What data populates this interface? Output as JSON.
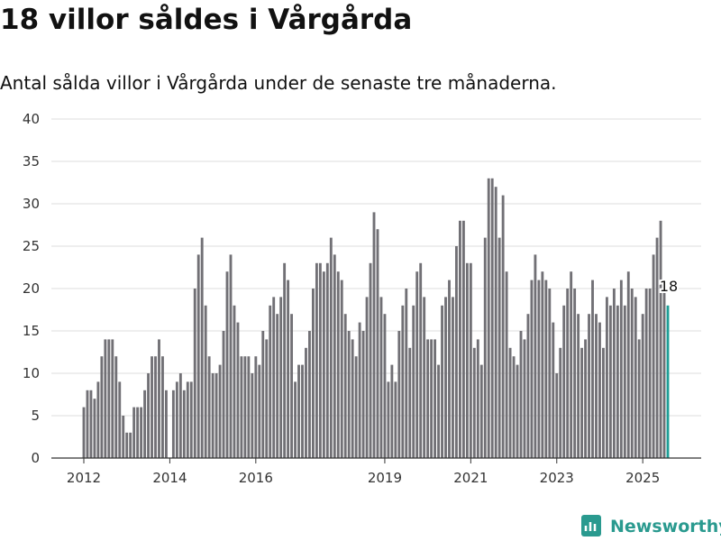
{
  "title": "18 villor såldes i Vårgårda",
  "subtitle": "Antal sålda villor i Vårgårda under de senaste tre månaderna.",
  "brand": "Newsworthy",
  "colors": {
    "bar": "#717075",
    "highlight": "#1e9e96",
    "grid": "#dddddd",
    "brand": "#2a9a8f"
  },
  "chart_data": {
    "type": "bar",
    "x_start": "2012-01",
    "x_end": "2025-08",
    "ylim": [
      0,
      40
    ],
    "yticks": [
      0,
      5,
      10,
      15,
      20,
      25,
      30,
      35,
      40
    ],
    "xticks": [
      "2012",
      "2014",
      "2016",
      "2019",
      "2021",
      "2023",
      "2025"
    ],
    "highlight_label": "18",
    "values": [
      6,
      8,
      8,
      7,
      9,
      12,
      14,
      14,
      14,
      12,
      9,
      5,
      3,
      3,
      6,
      6,
      6,
      8,
      10,
      12,
      12,
      14,
      12,
      8,
      0,
      8,
      9,
      10,
      8,
      9,
      9,
      20,
      24,
      26,
      18,
      12,
      10,
      10,
      11,
      15,
      22,
      24,
      18,
      16,
      12,
      12,
      12,
      10,
      12,
      11,
      15,
      14,
      18,
      19,
      17,
      19,
      23,
      21,
      17,
      9,
      11,
      11,
      13,
      15,
      20,
      23,
      23,
      22,
      23,
      26,
      24,
      22,
      21,
      17,
      15,
      14,
      12,
      16,
      15,
      19,
      23,
      29,
      27,
      19,
      17,
      9,
      11,
      9,
      15,
      18,
      20,
      13,
      18,
      22,
      23,
      19,
      14,
      14,
      14,
      11,
      18,
      19,
      21,
      19,
      25,
      28,
      28,
      23,
      23,
      13,
      14,
      11,
      26,
      33,
      33,
      32,
      26,
      31,
      22,
      13,
      12,
      11,
      15,
      14,
      17,
      21,
      24,
      21,
      22,
      21,
      20,
      16,
      10,
      13,
      18,
      20,
      22,
      20,
      17,
      13,
      14,
      17,
      21,
      17,
      16,
      13,
      19,
      18,
      20,
      18,
      21,
      18,
      22,
      20,
      19,
      14,
      17,
      20,
      20,
      24,
      26,
      28,
      20,
      18
    ]
  }
}
